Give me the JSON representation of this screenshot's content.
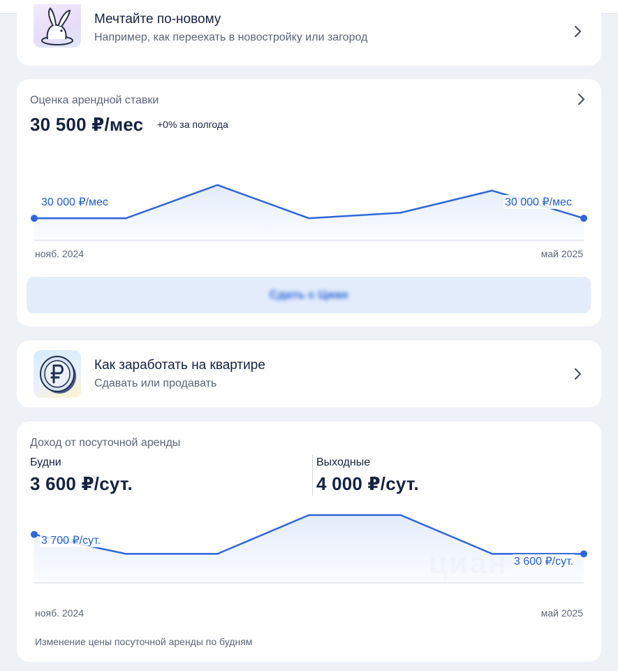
{
  "promo_dream": {
    "title": "Мечтайте по-новому",
    "subtitle": "Например, как переехать в новостройку или загород",
    "icon": "bunny-icon"
  },
  "rent_estimate": {
    "label": "Оценка арендной ставки",
    "value": "30 500 ₽/мес",
    "change": "+0% за полгода",
    "start_label": "30 000 ₽/мес",
    "end_label": "30 000 ₽/мес",
    "x_start": "нояб. 2024",
    "x_end": "май 2025",
    "cta_label": "Сдать с Циан",
    "chart_data": {
      "type": "area",
      "x": [
        "нояб. 2024",
        "дек. 2024",
        "янв. 2025",
        "февр. 2025",
        "март 2025",
        "апр. 2025",
        "май 2025"
      ],
      "values": [
        30000,
        30000,
        31500,
        30000,
        30250,
        31250,
        30000
      ],
      "ylim": [
        29000,
        32500
      ],
      "color": "#2f67d9"
    }
  },
  "promo_earn": {
    "title": "Как заработать на квартире",
    "subtitle": "Сдавать или продавать",
    "icon": "ruble-coin-icon"
  },
  "daily_income": {
    "label": "Доход от посуточной аренды",
    "weekdays_label": "Будни",
    "weekdays_value": "3 600 ₽/сут.",
    "weekends_label": "Выходные",
    "weekends_value": "4 000 ₽/сут.",
    "start_label": "3 700 ₽/сут.",
    "end_label": "3 600 ₽/сут.",
    "x_start": "нояб. 2024",
    "x_end": "май 2025",
    "footnote": "Изменение цены посуточной аренды по будням",
    "watermark": "циан",
    "chart_data": {
      "type": "area",
      "x": [
        "нояб. 2024",
        "дек. 2024",
        "янв. 2025",
        "февр. 2025",
        "март 2025",
        "апр. 2025",
        "май 2025"
      ],
      "values": [
        3700,
        3600,
        3600,
        3800,
        3800,
        3600,
        3600
      ],
      "ylim": [
        3450,
        3850
      ],
      "color": "#2f67d9"
    }
  }
}
